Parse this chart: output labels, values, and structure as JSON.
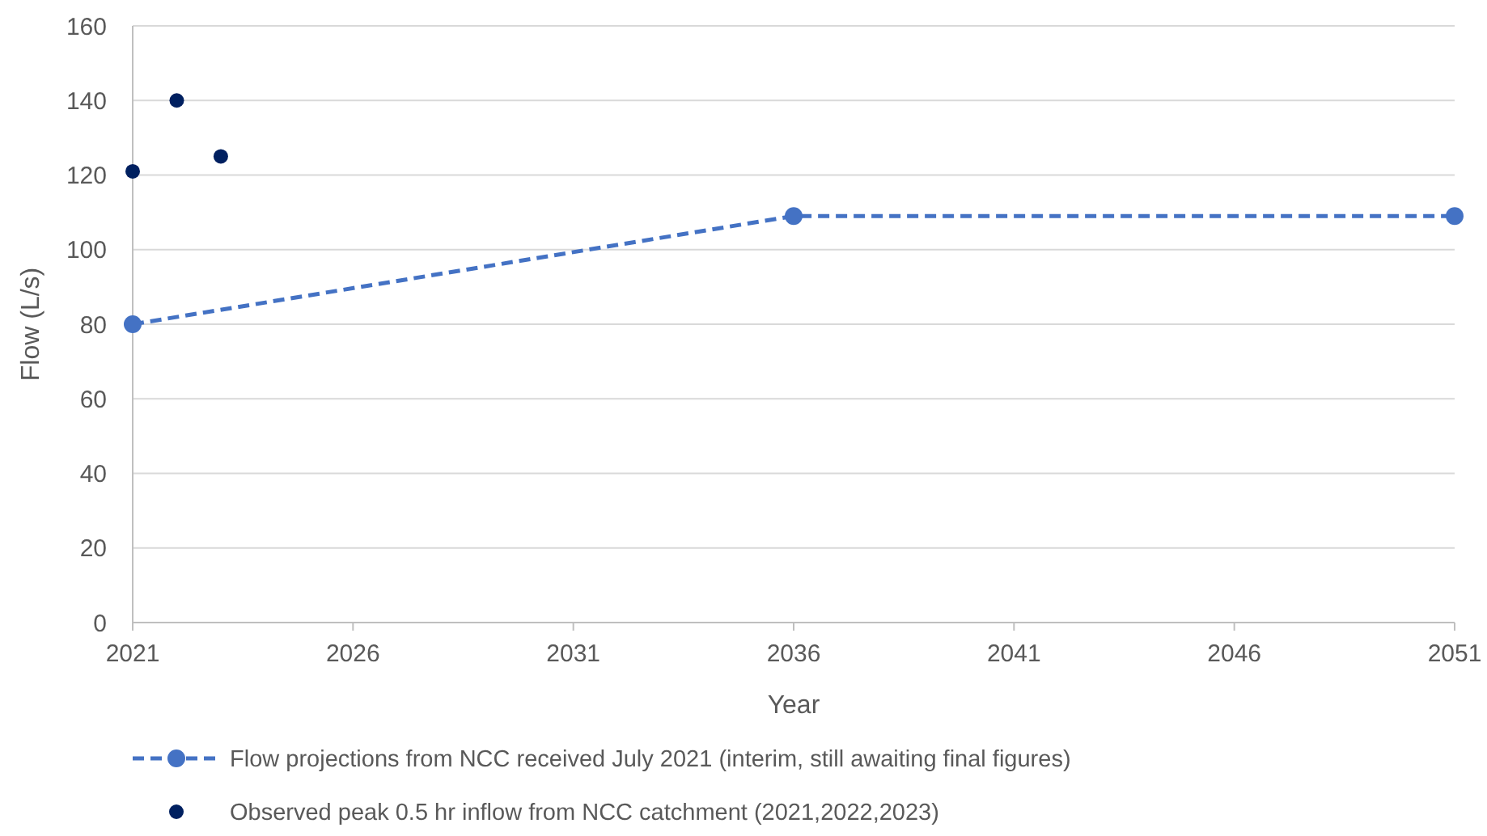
{
  "chart_data": {
    "type": "line",
    "xlabel": "Year",
    "ylabel": "Flow (L/s)",
    "xlim": [
      2021,
      2051
    ],
    "xticks": [
      2021,
      2026,
      2031,
      2036,
      2041,
      2046,
      2051
    ],
    "ylim": [
      0,
      160
    ],
    "yticks": [
      0,
      20,
      40,
      60,
      80,
      100,
      120,
      140,
      160
    ],
    "grid": "y",
    "legend": "bottom",
    "series": [
      {
        "name": "Flow projections from NCC received July 2021 (interim, still awaiting final figures)",
        "color": "#4472c4",
        "x": [
          2021,
          2036,
          2051
        ],
        "values": [
          80,
          109,
          109
        ],
        "marker": "circle",
        "line_style": "dashed"
      },
      {
        "name": "Observed peak 0.5 hr inflow from NCC catchment (2021,2022,2023)",
        "type": "scatter",
        "color": "#002060",
        "x": [
          2021,
          2022,
          2023
        ],
        "values": [
          121,
          140,
          125
        ],
        "marker": "circle"
      }
    ]
  }
}
